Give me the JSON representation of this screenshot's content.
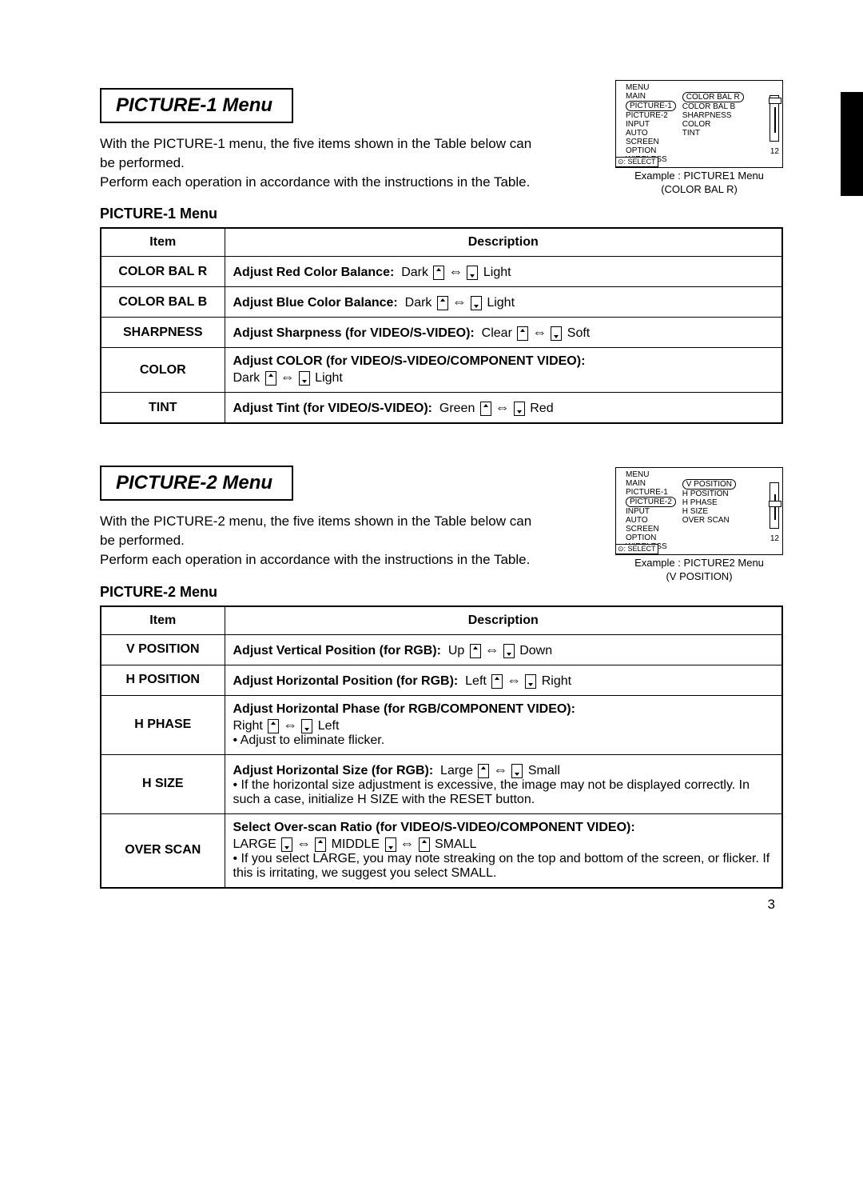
{
  "page_number": "3",
  "section1": {
    "title": "PICTURE-1 Menu",
    "intro": "With the PICTURE-1 menu, the five items shown in the Table below can be performed.\nPerform each operation in accordance with the instructions in the Table.",
    "subhead": "PICTURE-1 Menu",
    "headers": {
      "item": "Item",
      "desc": "Description"
    },
    "rows": [
      {
        "item": "COLOR BAL R",
        "label": "Adjust Red Color Balance:",
        "left": "Dark",
        "right": "Light"
      },
      {
        "item": "COLOR BAL B",
        "label": "Adjust Blue Color Balance:",
        "left": "Dark",
        "right": "Light"
      },
      {
        "item": "SHARPNESS",
        "label": "Adjust Sharpness (for VIDEO/S-VIDEO):",
        "left": "Clear",
        "right": "Soft"
      },
      {
        "item": "COLOR",
        "label": "Adjust COLOR (for VIDEO/S-VIDEO/COMPONENT VIDEO):",
        "left": "Dark",
        "right": "Light",
        "multiline": true
      },
      {
        "item": "TINT",
        "label": "Adjust Tint (for VIDEO/S-VIDEO):",
        "left": "Green",
        "right": "Red"
      }
    ],
    "diagram": {
      "title": "MENU",
      "col1": [
        "MAIN",
        "PICTURE-1",
        "PICTURE-2",
        "INPUT",
        "AUTO",
        "SCREEN",
        "OPTION",
        "WIRELESS"
      ],
      "col1_selected_index": 1,
      "col2": [
        "COLOR BAL R",
        "COLOR BAL B",
        "SHARPNESS",
        "COLOR",
        "TINT"
      ],
      "col2_selected_index": 0,
      "value": "12",
      "select_label": "⊙: SELECT",
      "knob_top": true,
      "caption_line1": "Example : PICTURE1 Menu",
      "caption_line2": "(COLOR BAL R)"
    }
  },
  "section2": {
    "title": "PICTURE-2 Menu",
    "intro": "With the PICTURE-2 menu, the five items shown in the Table below can be performed.\nPerform each operation in accordance with the instructions in the Table.",
    "subhead": "PICTURE-2 Menu",
    "headers": {
      "item": "Item",
      "desc": "Description"
    },
    "rows": [
      {
        "item": "V POSITION",
        "label": "Adjust Vertical Position (for RGB):",
        "left": "Up",
        "right": "Down"
      },
      {
        "item": "H POSITION",
        "label": "Adjust Horizontal Position (for RGB):",
        "left": "Left",
        "right": "Right"
      },
      {
        "item": "H PHASE",
        "label": "Adjust Horizontal Phase (for RGB/COMPONENT VIDEO):",
        "left": "Right",
        "right": "Left",
        "note": "• Adjust to eliminate flicker.",
        "multiline": true
      },
      {
        "item": "H SIZE",
        "label": "Adjust Horizontal Size (for RGB):",
        "left": "Large",
        "right": "Small",
        "note": "• If the horizontal size adjustment is excessive, the image may not be displayed correctly. In such a case, initialize H SIZE with the RESET button."
      },
      {
        "item": "OVER SCAN",
        "label": "Select Over-scan Ratio (for VIDEO/S-VIDEO/COMPONENT VIDEO):",
        "custom": "LARGE ⬇ ⇔ ⬆ MIDDLE ⬇ ⇔ ⬆ SMALL",
        "note": "• If you select LARGE, you may note streaking on the top and bottom of the screen, or flicker. If this is irritating, we suggest you select SMALL."
      }
    ],
    "diagram": {
      "title": "MENU",
      "col1": [
        "MAIN",
        "PICTURE-1",
        "PICTURE-2",
        "INPUT",
        "AUTO",
        "SCREEN",
        "OPTION",
        "WIRELESS"
      ],
      "col1_selected_index": 2,
      "col2": [
        "V POSITION",
        "H POSITION",
        "H PHASE",
        "H SIZE",
        "OVER SCAN"
      ],
      "col2_selected_index": 0,
      "value": "12",
      "select_label": "⊙: SELECT",
      "knob_top": false,
      "caption_line1": "Example : PICTURE2 Menu",
      "caption_line2": "(V POSITION)"
    }
  }
}
